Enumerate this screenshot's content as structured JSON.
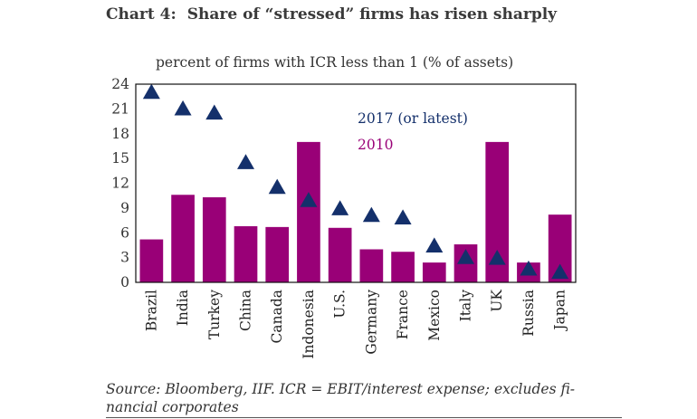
{
  "title_label": "Chart 4:",
  "title_text": "Share of “stressed” firms has risen sharply",
  "source": "Source: Bloomberg, IIF.  ICR = EBIT/interest expense; excludes fi-nancial corporates",
  "colors": {
    "bar": "#990077",
    "marker": "#14306b",
    "axis": "#111111"
  },
  "chart_data": {
    "type": "bar",
    "title": "",
    "ylabel": "percent of firms with ICR less than 1 (% of assets)",
    "xlabel": "",
    "ylim": [
      0,
      24
    ],
    "yticks": [
      "24",
      "21",
      "18",
      "15",
      "12",
      "9",
      "6",
      "3",
      "0"
    ],
    "ytick_values": [
      24,
      21,
      18,
      15,
      12,
      9,
      6,
      3,
      0
    ],
    "legend_position": "top-right",
    "categories": [
      "Brazil",
      "India",
      "Turkey",
      "China",
      "Canada",
      "Indonesia",
      "U.S.",
      "Germany",
      "France",
      "Mexico",
      "Italy",
      "UK",
      "Russia",
      "Japan"
    ],
    "series": [
      {
        "name": "2010",
        "type": "bar",
        "values": [
          5.2,
          10.6,
          10.3,
          6.8,
          6.7,
          17.0,
          6.6,
          4.0,
          3.7,
          2.4,
          4.6,
          17.0,
          2.4,
          8.2
        ]
      },
      {
        "name": "2017 (or latest)",
        "type": "marker",
        "values": [
          23.0,
          21.0,
          20.5,
          14.5,
          11.5,
          9.9,
          8.9,
          8.1,
          7.8,
          4.4,
          3.0,
          2.9,
          1.6,
          1.2
        ]
      }
    ]
  }
}
